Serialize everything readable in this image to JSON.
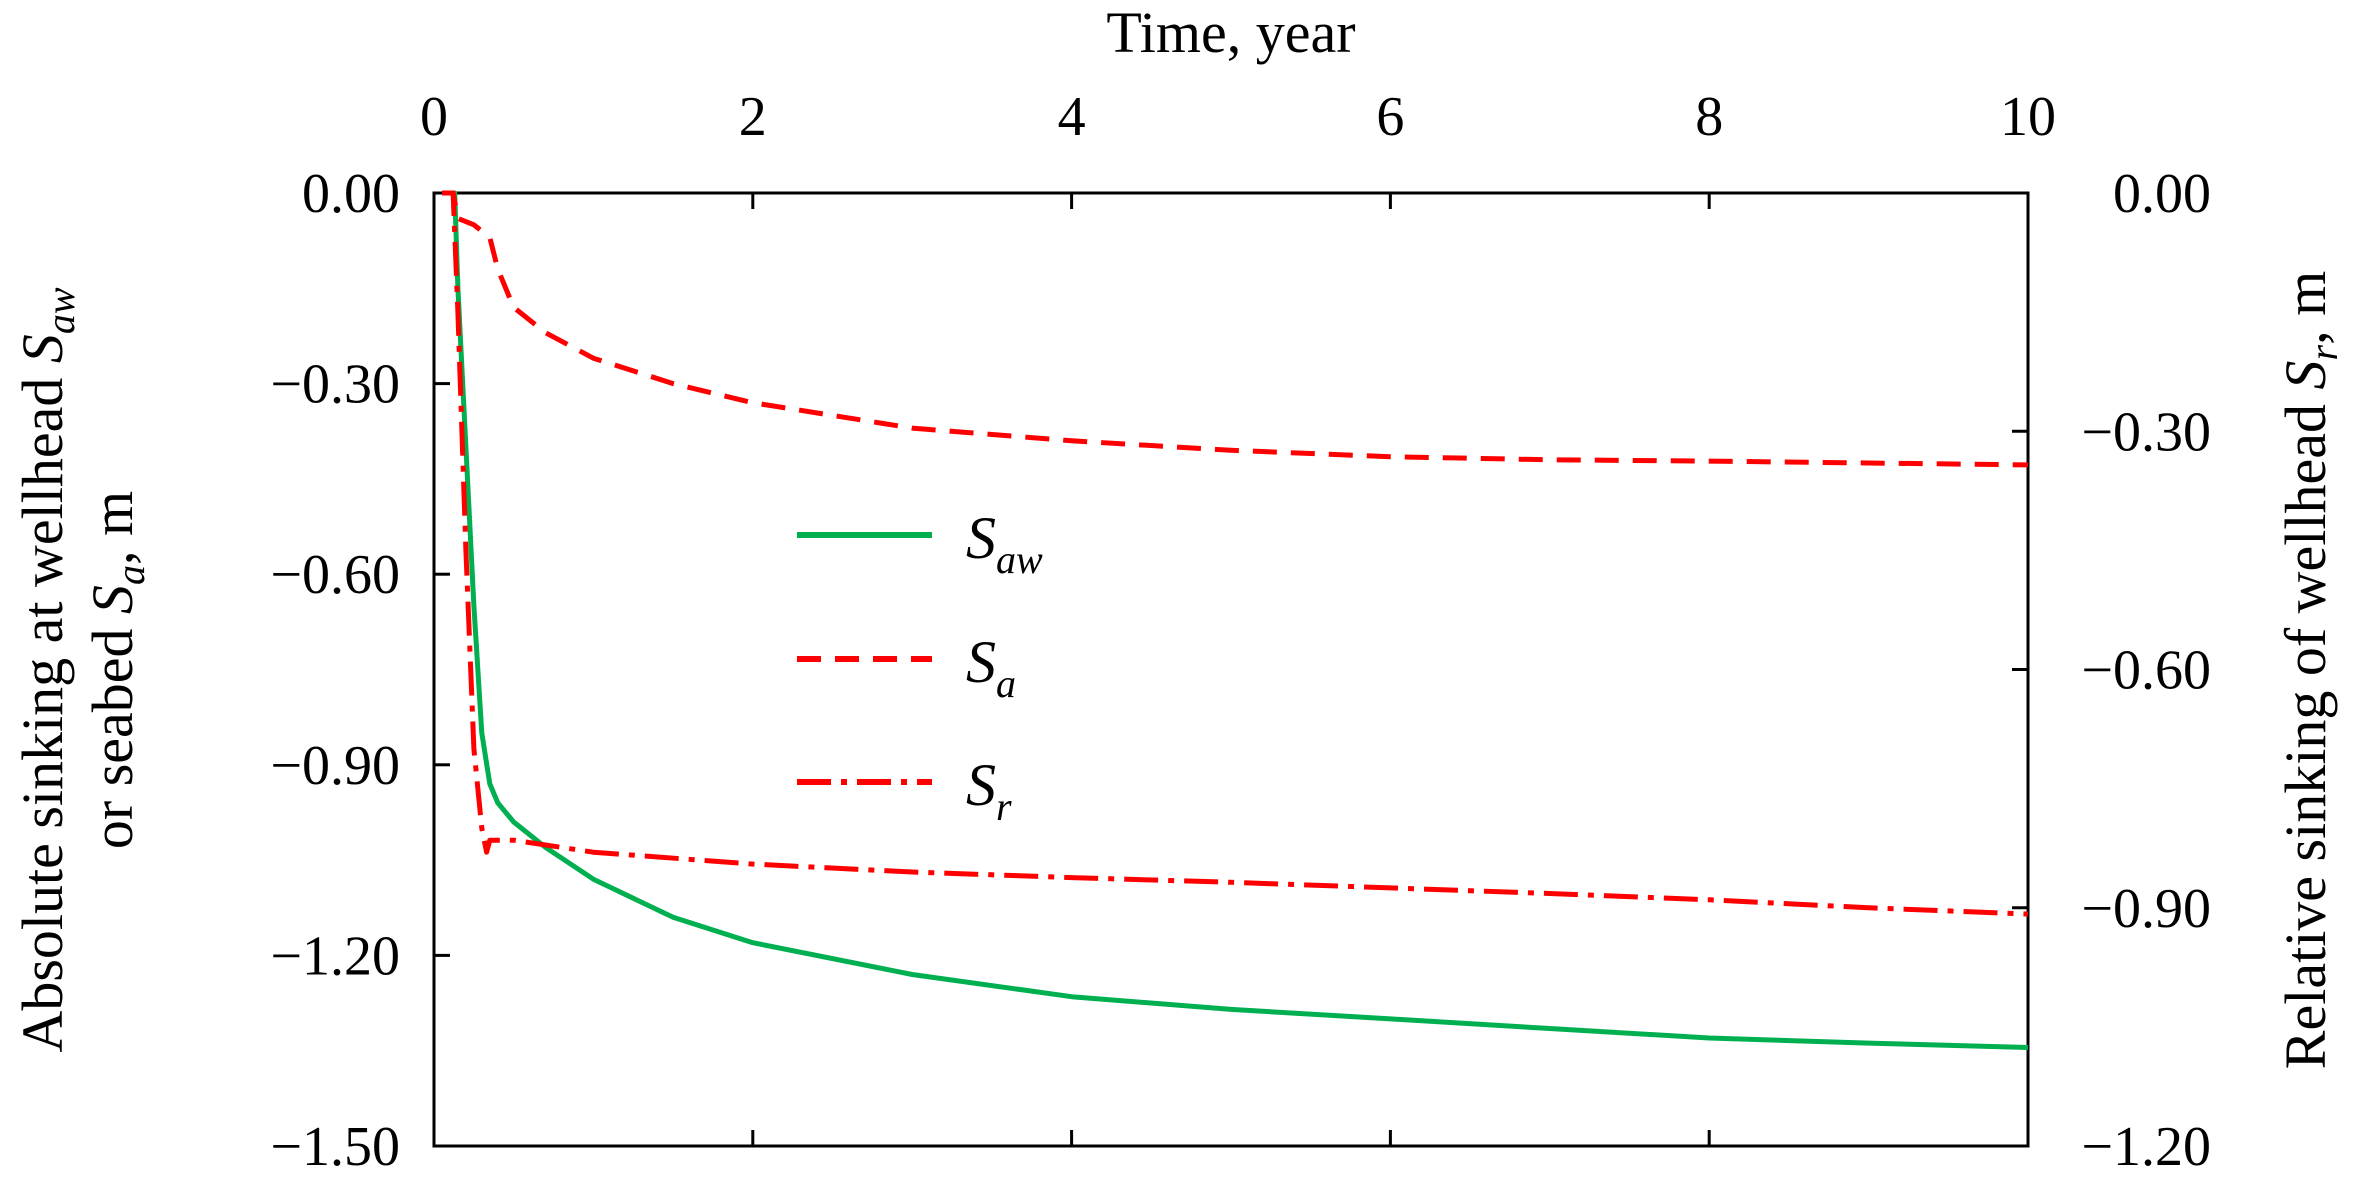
{
  "chart_data": {
    "type": "line",
    "x_axis": {
      "title": "Time, year",
      "position": "top",
      "range": [
        0,
        10
      ],
      "ticks": [
        0,
        2,
        4,
        6,
        8,
        10
      ],
      "tick_labels": [
        "0",
        "2",
        "4",
        "6",
        "8",
        "10"
      ]
    },
    "y_left": {
      "title_line1": "Absolute sinking at wellhead ",
      "title_line1_symbol": "S",
      "title_line1_sub": "aw",
      "title_line2_prefix": "or seabed ",
      "title_line2_symbol": "S",
      "title_line2_sub": "a",
      "title_line2_suffix": ", m",
      "range": [
        -1.5,
        0
      ],
      "ticks": [
        0,
        -0.3,
        -0.6,
        -0.9,
        -1.2,
        -1.5
      ],
      "tick_labels": [
        "0.00",
        "−0.30",
        "−0.60",
        "−0.90",
        "−1.20",
        "−1.50"
      ]
    },
    "y_right": {
      "title_prefix": "Relative sinking of wellhead ",
      "title_symbol": "S",
      "title_sub": "r",
      "title_suffix": ", m",
      "range": [
        -1.2,
        0
      ],
      "ticks": [
        0,
        -0.3,
        -0.6,
        -0.9,
        -1.2
      ],
      "tick_labels": [
        "0.00",
        "−0.30",
        "−0.60",
        "−0.90",
        "−1.20"
      ]
    },
    "grid": false,
    "legend_placement": "center-left",
    "series": [
      {
        "name": "S_aw",
        "label_symbol": "S",
        "label_sub": "aw",
        "axis": "left",
        "color": "#00b050",
        "style": "solid",
        "points": [
          [
            0.05,
            0
          ],
          [
            0.13,
            0
          ],
          [
            0.15,
            -0.15
          ],
          [
            0.2,
            -0.4
          ],
          [
            0.25,
            -0.65
          ],
          [
            0.3,
            -0.85
          ],
          [
            0.35,
            -0.93
          ],
          [
            0.4,
            -0.96
          ],
          [
            0.5,
            -0.99
          ],
          [
            0.7,
            -1.03
          ],
          [
            1.0,
            -1.08
          ],
          [
            1.5,
            -1.14
          ],
          [
            2.0,
            -1.18
          ],
          [
            3.0,
            -1.23
          ],
          [
            4.0,
            -1.265
          ],
          [
            5.0,
            -1.285
          ],
          [
            6.0,
            -1.3
          ],
          [
            7.0,
            -1.315
          ],
          [
            8.0,
            -1.33
          ],
          [
            9.0,
            -1.338
          ],
          [
            10.0,
            -1.345
          ]
        ]
      },
      {
        "name": "S_a",
        "label_symbol": "S",
        "label_sub": "a",
        "axis": "left",
        "color": "#ff0000",
        "style": "dashed",
        "points": [
          [
            0.05,
            0
          ],
          [
            0.12,
            0
          ],
          [
            0.15,
            -0.04
          ],
          [
            0.25,
            -0.05
          ],
          [
            0.35,
            -0.07
          ],
          [
            0.4,
            -0.12
          ],
          [
            0.5,
            -0.18
          ],
          [
            0.7,
            -0.22
          ],
          [
            1.0,
            -0.26
          ],
          [
            1.5,
            -0.3
          ],
          [
            2.0,
            -0.33
          ],
          [
            3.0,
            -0.37
          ],
          [
            4.0,
            -0.39
          ],
          [
            5.0,
            -0.405
          ],
          [
            6.0,
            -0.415
          ],
          [
            7.0,
            -0.42
          ],
          [
            8.0,
            -0.422
          ],
          [
            9.0,
            -0.425
          ],
          [
            10.0,
            -0.428
          ]
        ]
      },
      {
        "name": "S_r",
        "label_symbol": "S",
        "label_sub": "r",
        "axis": "right",
        "color": "#ff0000",
        "style": "dashdot",
        "points": [
          [
            0.05,
            0
          ],
          [
            0.12,
            0
          ],
          [
            0.15,
            -0.15
          ],
          [
            0.2,
            -0.45
          ],
          [
            0.25,
            -0.7
          ],
          [
            0.3,
            -0.8
          ],
          [
            0.33,
            -0.83
          ],
          [
            0.35,
            -0.815
          ],
          [
            0.5,
            -0.815
          ],
          [
            1.0,
            -0.83
          ],
          [
            2.0,
            -0.845
          ],
          [
            3.0,
            -0.855
          ],
          [
            4.0,
            -0.862
          ],
          [
            5.0,
            -0.868
          ],
          [
            6.0,
            -0.875
          ],
          [
            7.0,
            -0.882
          ],
          [
            8.0,
            -0.89
          ],
          [
            9.0,
            -0.9
          ],
          [
            10.0,
            -0.908
          ]
        ]
      }
    ]
  }
}
